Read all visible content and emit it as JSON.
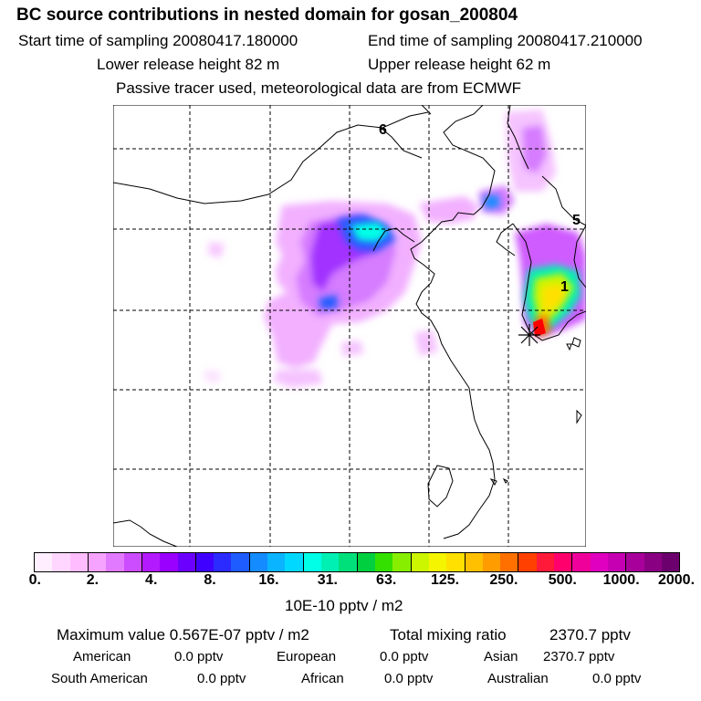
{
  "header": {
    "title": "BC  source contributions in nested domain for gosan_200804",
    "start_time": "Start time of sampling 20080417.180000",
    "end_time": "End time of sampling 20080417.210000",
    "lower_height": "Lower release height   82 m",
    "upper_height": "Upper release height   62 m",
    "tracer_note": "Passive tracer used, meteorological data are from ECMWF"
  },
  "map": {
    "labels": {
      "l6": "6",
      "l5": "5",
      "l1": "1"
    },
    "receptor_name": "gosan"
  },
  "colorbar": {
    "colors": [
      "#ffeeff",
      "#ffd6ff",
      "#ffbdff",
      "#f5a3ff",
      "#e27aff",
      "#cc4dff",
      "#b31aff",
      "#9900ff",
      "#6c00ff",
      "#4000ff",
      "#2b2bff",
      "#1f5cff",
      "#148cff",
      "#0ab4ff",
      "#00d8ff",
      "#00ffe6",
      "#00f0b4",
      "#00e07a",
      "#00d040",
      "#33e000",
      "#88ee00",
      "#ccf500",
      "#f5f500",
      "#ffe000",
      "#ffc000",
      "#ff9c00",
      "#ff7000",
      "#ff4000",
      "#ff1a3a",
      "#ff006c",
      "#f0009a",
      "#e000c0",
      "#c600b2",
      "#a8009a",
      "#8a0082",
      "#6c006c"
    ],
    "ticks": [
      "0.",
      "2.",
      "4.",
      "8.",
      "16.",
      "31.",
      "63.",
      "125.",
      "250.",
      "500.",
      "1000.",
      "2000."
    ],
    "units": "10E-10 pptv / m2"
  },
  "stats": {
    "max_value": "Maximum value  0.567E-07 pptv / m2",
    "total_label": "Total mixing ratio",
    "total_value": "2370.7 pptv",
    "american_label": "American",
    "american_value": "0.0 pptv",
    "european_label": "European",
    "european_value": "0.0 pptv",
    "asian_label": "Asian",
    "asian_value": "2370.7 pptv",
    "south_american_label": "South American",
    "south_american_value": "0.0 pptv",
    "african_label": "African",
    "african_value": "0.0 pptv",
    "australian_label": "Australian",
    "australian_value": "0.0 pptv"
  }
}
